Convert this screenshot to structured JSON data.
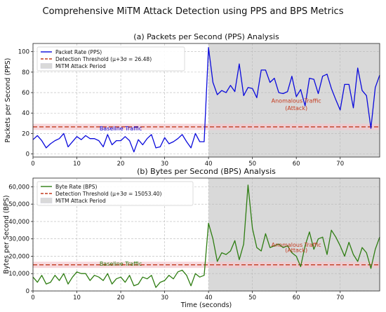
{
  "figure": {
    "title": "Comprehensive MiTM Attack Detection using PPS and BPS Metrics"
  },
  "chart_data": [
    {
      "type": "line",
      "subtitle": "(a) Packets per Second (PPS) Analysis",
      "xlabel": "",
      "ylabel": "Packets per Second (PPS)",
      "xlim": [
        0,
        79
      ],
      "ylim": [
        -3,
        108
      ],
      "xticks": [
        0,
        10,
        20,
        30,
        40,
        50,
        60,
        70
      ],
      "yticks": [
        0,
        20,
        40,
        60,
        80,
        100
      ],
      "ytick_labels": [
        "0",
        "20",
        "40",
        "60",
        "80",
        "100"
      ],
      "grid": true,
      "legend_position": "upper-left",
      "series": [
        {
          "name": "Packet Rate (PPS)",
          "color": "#0a0adc",
          "x": [
            0,
            1,
            2,
            3,
            4,
            5,
            6,
            7,
            8,
            9,
            10,
            11,
            12,
            13,
            14,
            15,
            16,
            17,
            18,
            19,
            20,
            21,
            22,
            23,
            24,
            25,
            26,
            27,
            28,
            29,
            30,
            31,
            32,
            33,
            34,
            35,
            36,
            37,
            38,
            39,
            40,
            41,
            42,
            43,
            44,
            45,
            46,
            47,
            48,
            49,
            50,
            51,
            52,
            53,
            54,
            55,
            56,
            57,
            58,
            59,
            60,
            61,
            62,
            63,
            64,
            65,
            66,
            67,
            68,
            69,
            70,
            71,
            72,
            73,
            74,
            75,
            76,
            77,
            78,
            79
          ],
          "y": [
            14,
            18,
            13,
            6,
            10,
            13,
            15,
            20,
            7,
            12,
            17,
            14,
            18,
            15,
            15,
            13,
            7,
            19,
            9,
            13,
            13,
            17,
            13,
            2,
            14,
            9,
            15,
            19,
            6,
            7,
            16,
            10,
            12,
            15,
            19,
            12,
            6,
            20,
            12,
            12,
            104,
            70,
            58,
            62,
            60,
            67,
            61,
            88,
            57,
            65,
            64,
            55,
            82,
            82,
            70,
            74,
            60,
            59,
            61,
            76,
            56,
            63,
            47,
            74,
            73,
            59,
            76,
            78,
            64,
            53,
            43,
            68,
            68,
            45,
            84,
            62,
            57,
            25,
            65,
            77
          ]
        }
      ],
      "threshold": {
        "name": "Detection Threshold (μ+3σ = 26.48)",
        "value": 26.48,
        "color": "#c43a1e"
      },
      "attack_period": {
        "name": "MiTM Attack Period",
        "x_start": 40,
        "x_end": 79,
        "color": "#d9d9d9"
      },
      "annotations": [
        {
          "text": "Baseline Traffic",
          "x": 20,
          "y": 23,
          "color": "#0a0adc"
        },
        {
          "text": "Anomalous Traffic",
          "x": 60,
          "y": 50,
          "color": "#c43a1e"
        },
        {
          "text": "(Attack)",
          "x": 60,
          "y": 43,
          "color": "#c43a1e"
        }
      ]
    },
    {
      "type": "line",
      "subtitle": "(b) Bytes per Second (BPS) Analysis",
      "xlabel": "Time (seconds)",
      "ylabel": "Bytes per Second (BPS)",
      "xlim": [
        0,
        79
      ],
      "ylim": [
        0,
        65000
      ],
      "xticks": [
        0,
        10,
        20,
        30,
        40,
        50,
        60,
        70
      ],
      "yticks": [
        0,
        10000,
        20000,
        30000,
        40000,
        50000,
        60000
      ],
      "ytick_labels": [
        "0",
        "10,000",
        "20,000",
        "30,000",
        "40,000",
        "50,000",
        "60,000"
      ],
      "grid": true,
      "legend_position": "upper-left",
      "series": [
        {
          "name": "Byte Rate (BPS)",
          "color": "#2e7d12",
          "x": [
            0,
            1,
            2,
            3,
            4,
            5,
            6,
            7,
            8,
            9,
            10,
            11,
            12,
            13,
            14,
            15,
            16,
            17,
            18,
            19,
            20,
            21,
            22,
            23,
            24,
            25,
            26,
            27,
            28,
            29,
            30,
            31,
            32,
            33,
            34,
            35,
            36,
            37,
            38,
            39,
            40,
            41,
            42,
            43,
            44,
            45,
            46,
            47,
            48,
            49,
            50,
            51,
            52,
            53,
            54,
            55,
            56,
            57,
            58,
            59,
            60,
            61,
            62,
            63,
            64,
            65,
            66,
            67,
            68,
            69,
            70,
            71,
            72,
            73,
            74,
            75,
            76,
            77,
            78,
            79
          ],
          "y": [
            8000,
            5000,
            9000,
            4000,
            5000,
            9000,
            6000,
            10000,
            4000,
            8000,
            11000,
            10000,
            10000,
            6000,
            9000,
            8000,
            6000,
            10000,
            4000,
            7000,
            8000,
            5000,
            9000,
            3000,
            4000,
            8000,
            7000,
            9000,
            2000,
            5000,
            6000,
            9000,
            7000,
            11000,
            12000,
            9000,
            3000,
            10000,
            8000,
            9000,
            39000,
            30000,
            17000,
            22000,
            21000,
            23000,
            29000,
            18000,
            27000,
            61000,
            36000,
            25000,
            23000,
            33000,
            25000,
            26000,
            27000,
            25000,
            26000,
            22000,
            20000,
            14000,
            26000,
            34000,
            24000,
            30000,
            31000,
            21000,
            35000,
            31000,
            26000,
            20000,
            28000,
            21000,
            17000,
            25000,
            22000,
            13000,
            24000,
            31000
          ]
        }
      ],
      "threshold": {
        "name": "Detection Threshold (μ+3σ = 15053.40)",
        "value": 15053.4,
        "color": "#c43a1e"
      },
      "attack_period": {
        "name": "MiTM Attack Period",
        "x_start": 40,
        "x_end": 79,
        "color": "#d9d9d9"
      },
      "annotations": [
        {
          "text": "Baseline Traffic",
          "x": 20,
          "y": 14500,
          "color": "#2e7d12"
        },
        {
          "text": "Anomalous Traffic",
          "x": 60,
          "y": 25500,
          "color": "#c43a1e"
        },
        {
          "text": "(Attack)",
          "x": 60,
          "y": 22500,
          "color": "#c43a1e"
        }
      ]
    }
  ]
}
